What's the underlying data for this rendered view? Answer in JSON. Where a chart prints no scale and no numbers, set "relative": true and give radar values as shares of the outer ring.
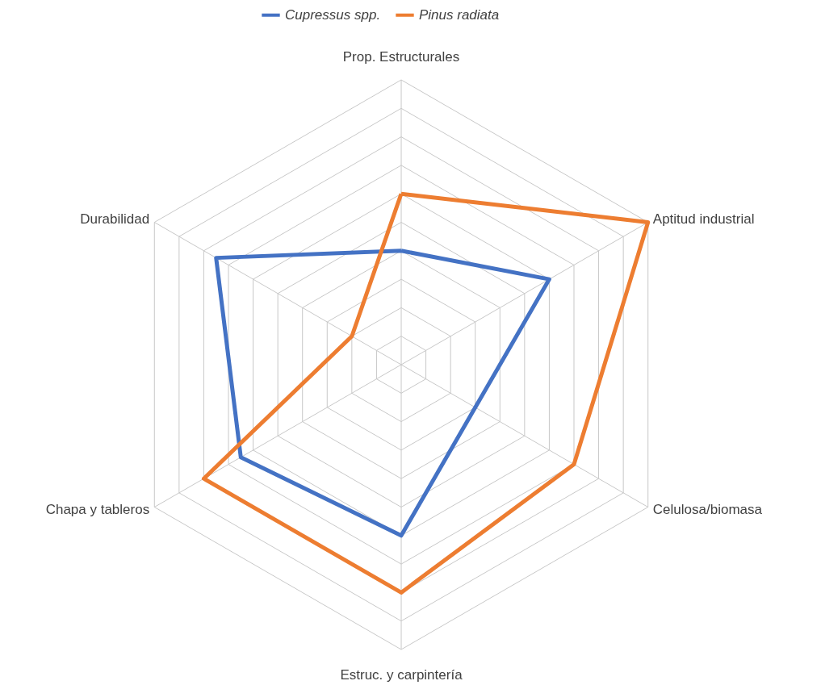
{
  "chart_data": {
    "type": "radar",
    "relative": true,
    "grid": true,
    "legend": "top",
    "marker": "none",
    "line_style": "solid",
    "categories": [
      "Prop. Estructurales",
      "Aptitud industrial",
      "Celulosa/biomasa",
      "Estruc. y carpintería",
      "Chapa y tableros",
      "Durabilidad"
    ],
    "series": [
      {
        "name": "Cupressus spp.",
        "color": "#4472c4",
        "values": [
          0.4,
          0.6,
          0.3,
          0.6,
          0.65,
          0.75
        ]
      },
      {
        "name": "Pinus radiata",
        "color": "#ed7d31",
        "values": [
          0.6,
          1.0,
          0.7,
          0.8,
          0.8,
          0.2
        ]
      }
    ]
  }
}
